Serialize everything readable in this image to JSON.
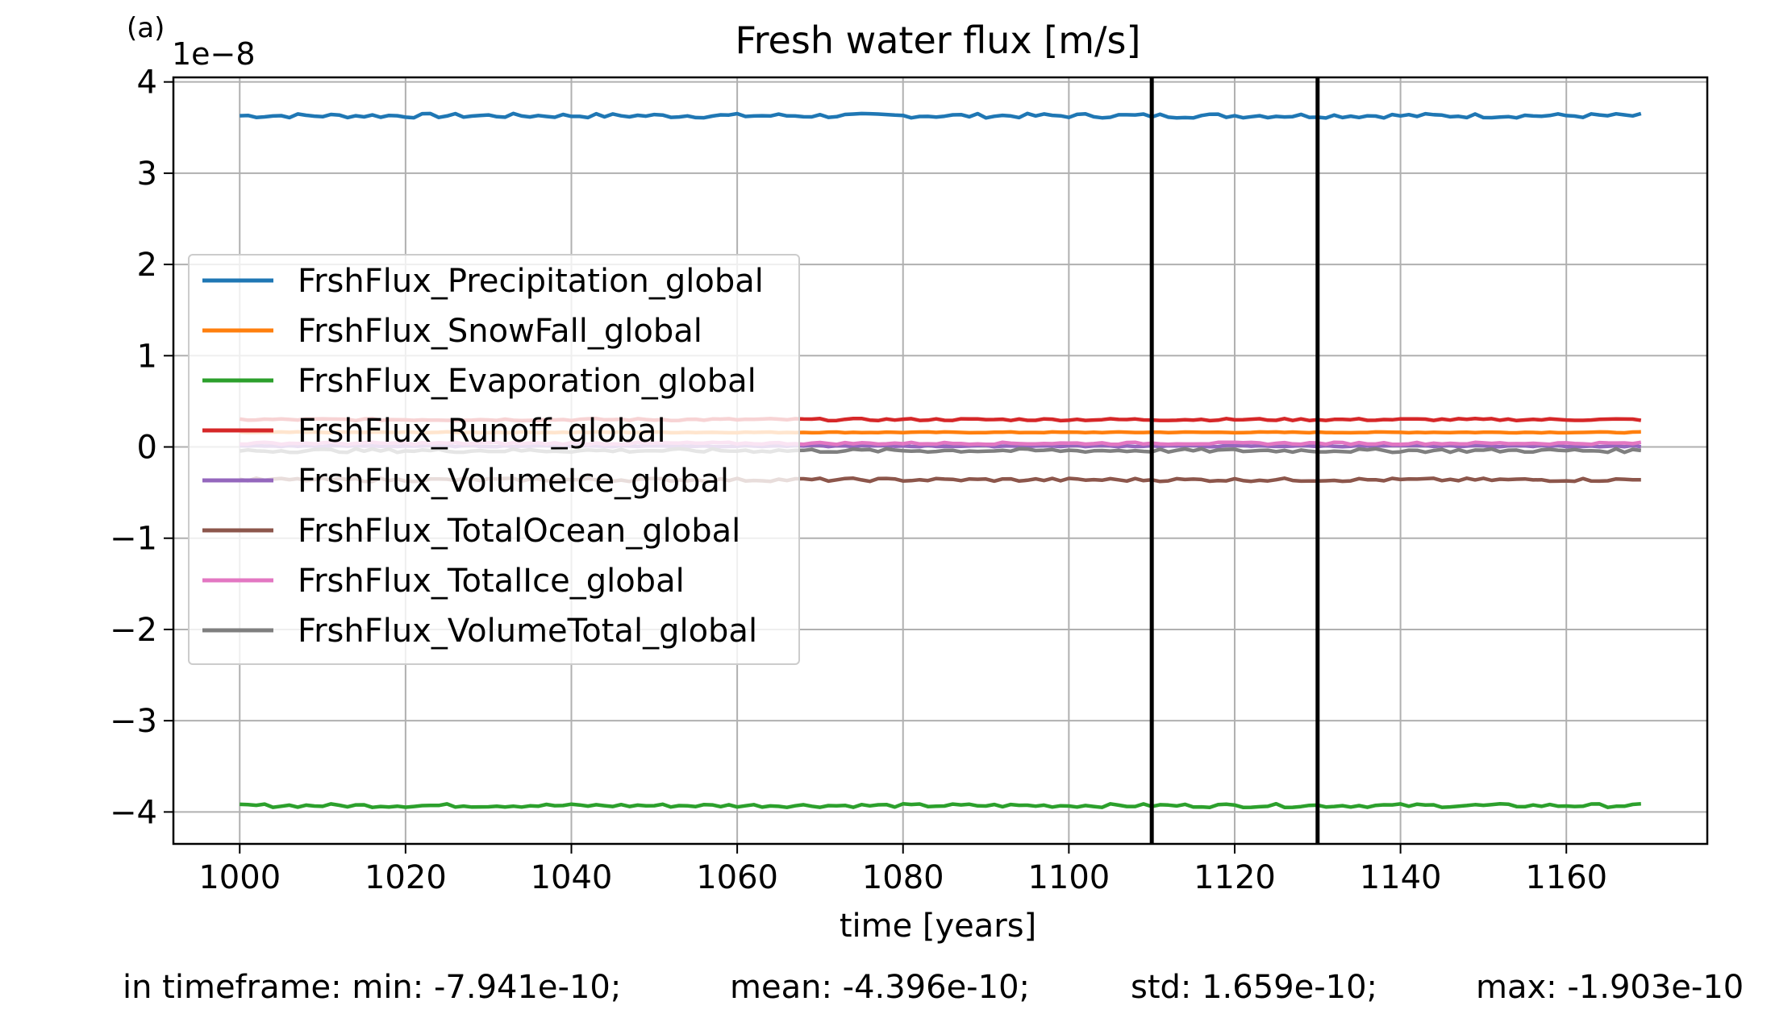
{
  "panel_label": "(a)",
  "chart_data": {
    "type": "line",
    "title": "Fresh water flux [m/s]",
    "xlabel": "time [years]",
    "ylabel": "",
    "y_scale_label": "1e−8",
    "y_multiplier": 1e-08,
    "xlim": [
      992,
      1177
    ],
    "ylim": [
      -4.35,
      4.05
    ],
    "xticks": [
      1000,
      1020,
      1040,
      1060,
      1080,
      1100,
      1120,
      1140,
      1160
    ],
    "yticks": [
      4,
      3,
      2,
      1,
      0,
      -1,
      -2,
      -3,
      -4
    ],
    "ytick_labels": [
      "4",
      "3",
      "2",
      "1",
      "0",
      "−1",
      "−2",
      "−3",
      "−4"
    ],
    "grid": true,
    "legend_position": "center-left",
    "vertical_lines_x": [
      1110,
      1130
    ],
    "x_start": 1000,
    "x_end": 1169,
    "series": [
      {
        "name": "FrshFlux_Precipitation_global",
        "color": "#1f77b4",
        "approx_value": 3.63,
        "variation": 0.025
      },
      {
        "name": "FrshFlux_SnowFall_global",
        "color": "#ff7f0e",
        "approx_value": 0.16,
        "variation": 0.005
      },
      {
        "name": "FrshFlux_Evaporation_global",
        "color": "#2ca02c",
        "approx_value": -3.93,
        "variation": 0.02
      },
      {
        "name": "FrshFlux_Runoff_global",
        "color": "#d62728",
        "approx_value": 0.3,
        "variation": 0.012
      },
      {
        "name": "FrshFlux_VolumeIce_global",
        "color": "#9467bd",
        "approx_value": 0.01,
        "variation": 0.008
      },
      {
        "name": "FrshFlux_TotalOcean_global",
        "color": "#8c564b",
        "approx_value": -0.36,
        "variation": 0.018
      },
      {
        "name": "FrshFlux_TotalIce_global",
        "color": "#e377c2",
        "approx_value": 0.04,
        "variation": 0.012
      },
      {
        "name": "FrshFlux_VolumeTotal_global",
        "color": "#7f7f7f",
        "approx_value": -0.04,
        "variation": 0.02
      }
    ]
  },
  "stats": {
    "min": "in timeframe: min: -7.941e-10;",
    "mean": "mean: -4.396e-10;",
    "std": "std: 1.659e-10;",
    "max": "max: -1.903e-10"
  }
}
